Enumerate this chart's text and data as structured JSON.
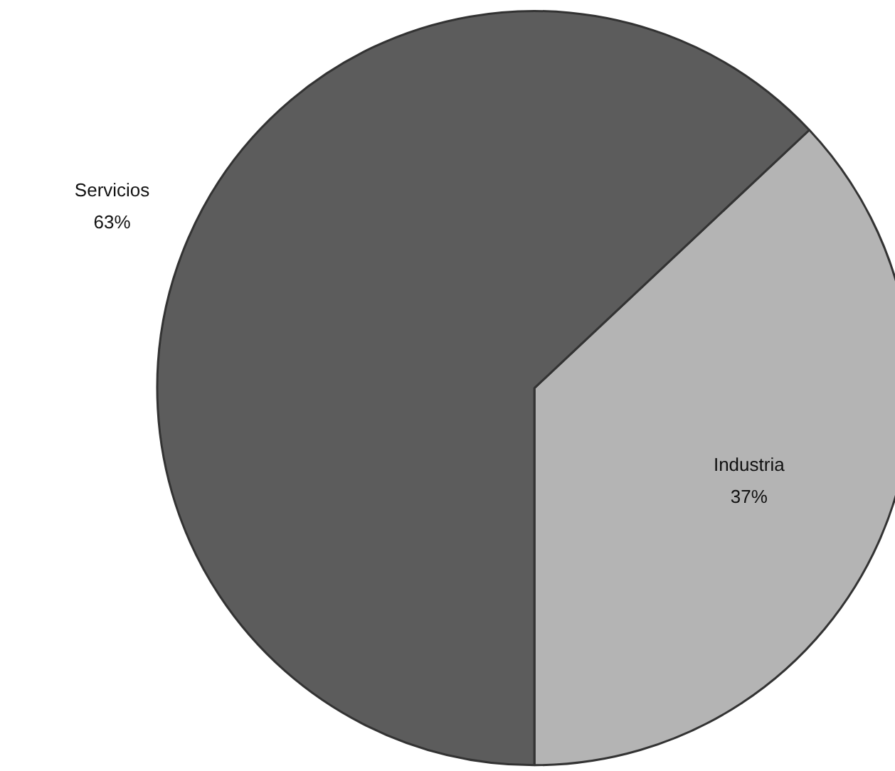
{
  "chart_data": {
    "type": "pie",
    "categories": [
      "Industria",
      "Servicios"
    ],
    "values": [
      37,
      63
    ],
    "colors": [
      "#b4b4b4",
      "#5c5c5c"
    ],
    "value_labels": [
      "37%",
      "63%"
    ]
  }
}
